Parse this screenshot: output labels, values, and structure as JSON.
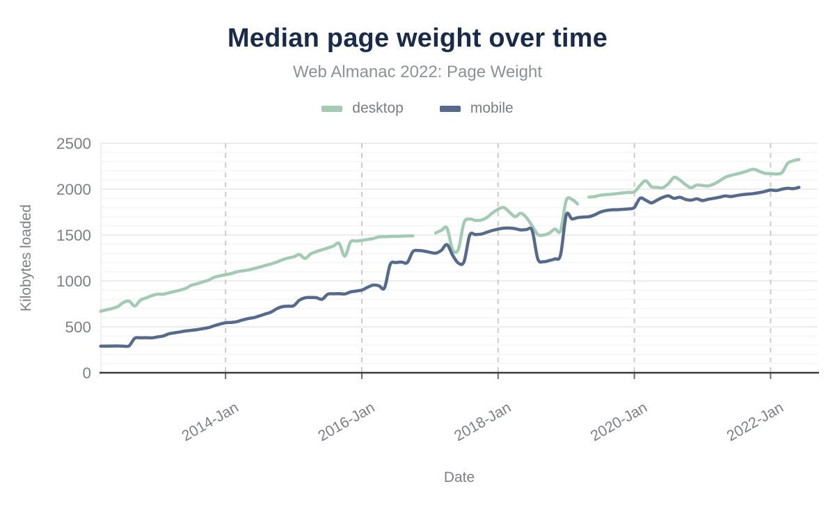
{
  "header": {
    "title": "Median page weight over time",
    "subtitle": "Web Almanac 2022: Page Weight"
  },
  "legend": [
    {
      "label": "desktop",
      "color": "#a3cbb3"
    },
    {
      "label": "mobile",
      "color": "#566a8c"
    }
  ],
  "palette": {
    "title_text": "#1a2b49",
    "subtitle_text": "#8e9093",
    "axis_text": "#7d7f83",
    "baseline": "#3b3b3b",
    "tick_mark": "#6c6c6c",
    "grid_minor": "#f6f6f6",
    "grid_major": "#ececec",
    "grid_vertical": "#cbcbcb",
    "desktop": "#a3cbb3",
    "mobile": "#566a8c"
  },
  "chart_data": {
    "type": "line",
    "title": "Median page weight over time",
    "subtitle": "Web Almanac 2022: Page Weight",
    "xlabel": "Date",
    "ylabel": "Kilobytes loaded",
    "unit": "KB",
    "ylim": [
      0,
      2500
    ],
    "y_ticks": [
      0,
      500,
      1000,
      1500,
      2000,
      2500
    ],
    "grid_minor_step": 100,
    "x_range": [
      2012.17,
      2022.69
    ],
    "x_ticks": [
      {
        "value": 2014.0,
        "label": "2014-Jan"
      },
      {
        "value": 2016.0,
        "label": "2016-Jan"
      },
      {
        "value": 2018.0,
        "label": "2018-Jan"
      },
      {
        "value": 2020.0,
        "label": "2020-Jan"
      },
      {
        "value": 2022.0,
        "label": "2022-Jan"
      }
    ],
    "legend_position": "top",
    "series": [
      {
        "name": "desktop",
        "color": "#a3cbb3",
        "start": "2012-03",
        "interval": "monthly",
        "values": [
          670,
          685,
          700,
          720,
          765,
          780,
          727,
          790,
          815,
          840,
          856,
          855,
          870,
          885,
          900,
          920,
          954,
          970,
          990,
          1008,
          1040,
          1055,
          1068,
          1080,
          1100,
          1110,
          1120,
          1135,
          1150,
          1169,
          1185,
          1205,
          1230,
          1250,
          1262,
          1288,
          1245,
          1295,
          1320,
          1340,
          1359,
          1380,
          1409,
          1270,
          1424,
          1435,
          1442,
          1452,
          1462,
          1480,
          1482,
          1485,
          1486,
          1488,
          1490,
          1492,
          null,
          null,
          null,
          1523,
          1550,
          1576,
          1340,
          1345,
          1636,
          1674,
          1660,
          1662,
          1690,
          1740,
          1780,
          1800,
          1750,
          1700,
          1738,
          1690,
          1600,
          1505,
          1500,
          1520,
          1565,
          1548,
          1876,
          1889,
          1839,
          null,
          1914,
          1920,
          1934,
          1940,
          1945,
          1952,
          1958,
          1965,
          1970,
          2040,
          2091,
          2028,
          2020,
          2015,
          2060,
          2129,
          2100,
          2050,
          2015,
          2045,
          2040,
          2035,
          2055,
          2090,
          2129,
          2150,
          2165,
          2180,
          2200,
          2217,
          2195,
          2172,
          2170,
          2165,
          2180,
          2280,
          2310,
          2323
        ]
      },
      {
        "name": "mobile",
        "color": "#566a8c",
        "start": "2012-03",
        "interval": "monthly",
        "values": [
          290,
          290,
          291,
          292,
          290,
          293,
          375,
          380,
          382,
          380,
          390,
          400,
          424,
          435,
          445,
          455,
          462,
          470,
          480,
          492,
          512,
          530,
          545,
          548,
          556,
          575,
          590,
          601,
          620,
          640,
          660,
          697,
          720,
          725,
          730,
          790,
          816,
          820,
          818,
          800,
          856,
          860,
          862,
          858,
          880,
          890,
          901,
          930,
          955,
          948,
          925,
          1180,
          1200,
          1205,
          1200,
          1320,
          1331,
          1325,
          1312,
          1303,
          1333,
          1396,
          1280,
          1195,
          1210,
          1497,
          1505,
          1510,
          1530,
          1550,
          1565,
          1575,
          1576,
          1570,
          1556,
          1560,
          1550,
          1240,
          1210,
          1222,
          1240,
          1283,
          1717,
          1676,
          1690,
          1696,
          1700,
          1720,
          1750,
          1767,
          1775,
          1776,
          1780,
          1785,
          1800,
          1901,
          1880,
          1851,
          1880,
          1910,
          1927,
          1900,
          1912,
          1889,
          1880,
          1895,
          1876,
          1890,
          1900,
          1912,
          1926,
          1920,
          1930,
          1940,
          1946,
          1952,
          1962,
          1975,
          1990,
          1985,
          2000,
          2010,
          2005,
          2020
        ]
      }
    ]
  }
}
